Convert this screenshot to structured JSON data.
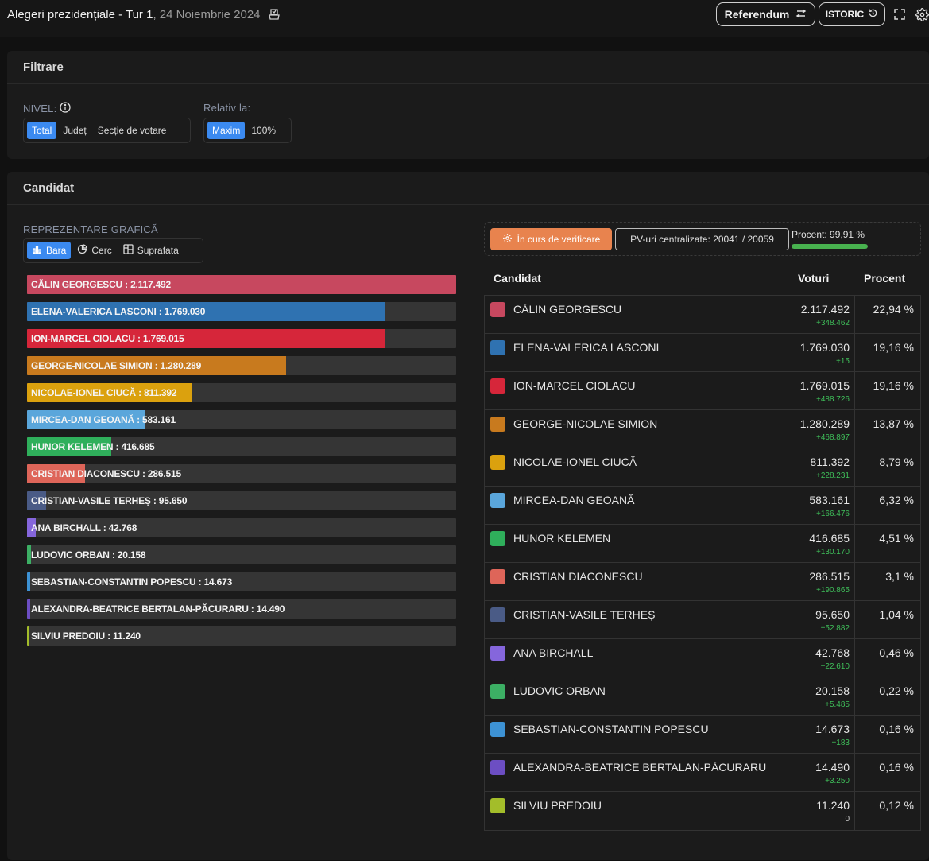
{
  "header": {
    "title": "Alegeri prezidențiale - Tur 1",
    "date": ", 24 Noiembrie 2024",
    "referendum_label": "Referendum",
    "istoric_label": "ISTORIC"
  },
  "filter": {
    "title": "Filtrare",
    "nivel_label": "NIVEL:",
    "nivel_options": [
      "Total",
      "Județ",
      "Secție de votare"
    ],
    "relativ_label": "Relativ la:",
    "relativ_options": [
      "Maxim",
      "100%"
    ]
  },
  "candidates_panel": {
    "title": "Candidat",
    "repr_label": "REPREZENTARE GRAFICĂ",
    "repr_options": [
      "Bara",
      "Cerc",
      "Suprafata"
    ]
  },
  "status": {
    "verif_label": "În curs de verificare",
    "pv_label": "PV-uri centralizate: 20041 / 20059",
    "procent_label": "Procent: 99,91 %",
    "procent_value": 99.91
  },
  "table": {
    "col_candidat": "Candidat",
    "col_voturi": "Voturi",
    "col_procent": "Procent"
  },
  "chart_data": {
    "type": "bar",
    "categories": [
      "CĂLIN GEORGESCU",
      "ELENA-VALERICA LASCONI",
      "ION-MARCEL CIOLACU",
      "GEORGE-NICOLAE SIMION",
      "NICOLAE-IONEL CIUCĂ",
      "MIRCEA-DAN GEOANĂ",
      "HUNOR KELEMEN",
      "CRISTIAN DIACONESCU",
      "CRISTIAN-VASILE TERHEȘ",
      "ANA BIRCHALL",
      "LUDOVIC ORBAN",
      "SEBASTIAN-CONSTANTIN POPESCU",
      "ALEXANDRA-BEATRICE BERTALAN-PĂCURARU",
      "SILVIU PREDOIU"
    ],
    "values": [
      2117492,
      1769030,
      1769015,
      1280289,
      811392,
      583161,
      416685,
      286515,
      95650,
      42768,
      20158,
      14673,
      14490,
      11240
    ]
  },
  "candidates": [
    {
      "name": "CĂLIN GEORGESCU",
      "votes": "2.117.492",
      "delta": "+348.462",
      "percent": "22,94 %",
      "color": "#c7485f"
    },
    {
      "name": "ELENA-VALERICA LASCONI",
      "votes": "1.769.030",
      "delta": "+15",
      "percent": "19,16 %",
      "color": "#2f72b1"
    },
    {
      "name": "ION-MARCEL CIOLACU",
      "votes": "1.769.015",
      "delta": "+488.726",
      "percent": "19,16 %",
      "color": "#d6263a"
    },
    {
      "name": "GEORGE-NICOLAE SIMION",
      "votes": "1.280.289",
      "delta": "+468.897",
      "percent": "13,87 %",
      "color": "#c87a1e"
    },
    {
      "name": "NICOLAE-IONEL CIUCĂ",
      "votes": "811.392",
      "delta": "+228.231",
      "percent": "8,79 %",
      "color": "#dba10e"
    },
    {
      "name": "MIRCEA-DAN GEOANĂ",
      "votes": "583.161",
      "delta": "+166.476",
      "percent": "6,32 %",
      "color": "#5aa6db"
    },
    {
      "name": "HUNOR KELEMEN",
      "votes": "416.685",
      "delta": "+130.170",
      "percent": "4,51 %",
      "color": "#2faf5b"
    },
    {
      "name": "CRISTIAN DIACONESCU",
      "votes": "286.515",
      "delta": "+190.865",
      "percent": "3,1 %",
      "color": "#de6559"
    },
    {
      "name": "CRISTIAN-VASILE TERHEȘ",
      "votes": "95.650",
      "delta": "+52.882",
      "percent": "1,04 %",
      "color": "#4a5b86"
    },
    {
      "name": "ANA BIRCHALL",
      "votes": "42.768",
      "delta": "+22.610",
      "percent": "0,46 %",
      "color": "#8566dc"
    },
    {
      "name": "LUDOVIC ORBAN",
      "votes": "20.158",
      "delta": "+5.485",
      "percent": "0,22 %",
      "color": "#3caf64"
    },
    {
      "name": "SEBASTIAN-CONSTANTIN POPESCU",
      "votes": "14.673",
      "delta": "+183",
      "percent": "0,16 %",
      "color": "#3d92d4"
    },
    {
      "name": "ALEXANDRA-BEATRICE BERTALAN-PĂCURARU",
      "votes": "14.490",
      "delta": "+3.250",
      "percent": "0,16 %",
      "color": "#6c4ec3"
    },
    {
      "name": "SILVIU PREDOIU",
      "votes": "11.240",
      "delta": "0",
      "percent": "0,12 %",
      "color": "#a3bd2a"
    }
  ]
}
